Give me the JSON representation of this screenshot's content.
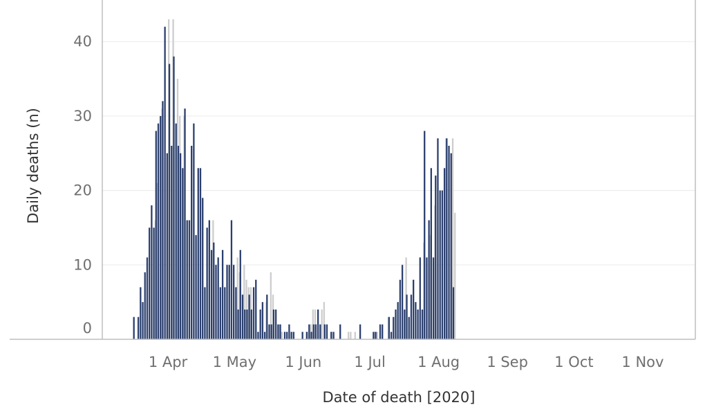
{
  "colors": {
    "dark_bar": "#2b3f6e",
    "light_bar": "#cdcdcd",
    "grid": "#eaeaea",
    "frame": "#bdbdbd"
  },
  "chart_data": {
    "type": "bar",
    "title": "",
    "xlabel": "Date of death [2020]",
    "ylabel": "Daily deaths (n)",
    "ylim": [
      0,
      45
    ],
    "yticks": [
      0,
      10,
      20,
      30,
      40
    ],
    "xticks": [
      {
        "label": "1 Apr",
        "date": "2020-04-01"
      },
      {
        "label": "1 May",
        "date": "2020-05-01"
      },
      {
        "label": "1 Jun",
        "date": "2020-06-01"
      },
      {
        "label": "1 Jul",
        "date": "2020-07-01"
      },
      {
        "label": "1 Aug",
        "date": "2020-08-01"
      },
      {
        "label": "1 Sep",
        "date": "2020-09-01"
      },
      {
        "label": "1 Oct",
        "date": "2020-10-01"
      },
      {
        "label": "1 Nov",
        "date": "2020-11-01"
      }
    ],
    "grid": true,
    "legend": "none",
    "x_start": "2020-03-17",
    "series": [
      {
        "color": "dark",
        "values": [
          3,
          0,
          3,
          7,
          5,
          9,
          11,
          15,
          18,
          15,
          28,
          29,
          30,
          32,
          42,
          25,
          37,
          26,
          38,
          29,
          26,
          25,
          23,
          31,
          16,
          16,
          26,
          29,
          14,
          23,
          23,
          19,
          7,
          15,
          16,
          12,
          13,
          10,
          11,
          7,
          12,
          7,
          10,
          10,
          16,
          10,
          7,
          4,
          12,
          6,
          4,
          4,
          6,
          4,
          7,
          8,
          1,
          4,
          5,
          1,
          6,
          2,
          2,
          4,
          4,
          2,
          2,
          0,
          1,
          1,
          2,
          1,
          1,
          0,
          0,
          0,
          1,
          0,
          1,
          2,
          1,
          2,
          2,
          4,
          2,
          0,
          2,
          2,
          0,
          1,
          1,
          0,
          0,
          2,
          0,
          0,
          0,
          0,
          0,
          0,
          0,
          0,
          2,
          0,
          0,
          0,
          0,
          0,
          1,
          1,
          0,
          2,
          2,
          0,
          0,
          3,
          1,
          3,
          4,
          5,
          8,
          10,
          4,
          6,
          3,
          6,
          8,
          5,
          4,
          11,
          4,
          28,
          11,
          16,
          23,
          11,
          22,
          27,
          20,
          20,
          23,
          27,
          26,
          25,
          7
        ]
      },
      {
        "color": "light",
        "values": [
          0,
          0,
          0,
          0,
          0,
          0,
          0,
          0,
          0,
          16,
          21,
          0,
          31,
          0,
          0,
          43,
          0,
          43,
          0,
          35,
          30,
          0,
          30,
          0,
          0,
          0,
          0,
          0,
          0,
          0,
          0,
          0,
          0,
          0,
          0,
          16,
          0,
          0,
          0,
          0,
          0,
          0,
          0,
          0,
          0,
          0,
          11,
          9,
          0,
          10,
          8,
          7,
          7,
          0,
          0,
          0,
          0,
          0,
          0,
          5,
          0,
          9,
          6,
          0,
          0,
          2,
          1,
          0,
          0,
          0,
          0,
          0,
          0,
          0,
          0,
          0,
          0,
          1,
          0,
          2,
          4,
          4,
          0,
          0,
          4,
          5,
          0,
          0,
          1,
          0,
          0,
          0,
          0,
          0,
          0,
          0,
          1,
          1,
          0,
          1,
          0,
          0,
          0,
          0,
          0,
          0,
          0,
          0,
          1,
          1,
          0,
          0,
          0,
          0,
          3,
          0,
          0,
          0,
          0,
          0,
          0,
          0,
          11,
          0,
          0,
          0,
          0,
          0,
          0,
          0,
          13,
          0,
          0,
          14,
          0,
          18,
          0,
          0,
          0,
          0,
          27,
          0,
          0,
          27,
          17
        ]
      }
    ]
  }
}
